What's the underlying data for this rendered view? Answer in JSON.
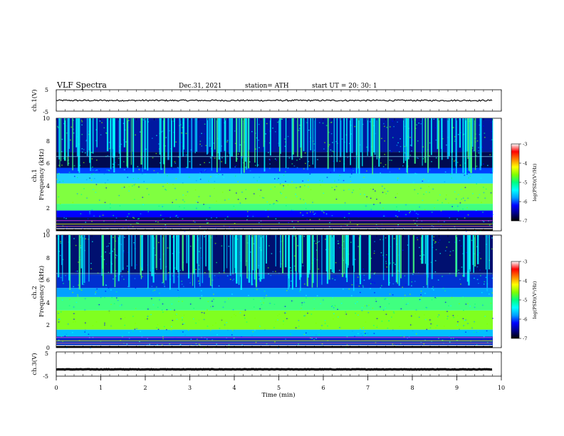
{
  "header": {
    "title": "VLF  Spectra",
    "date": "Dec.31, 2021",
    "station": "station= ATH",
    "start_ut": "start  UT  =    20: 30: 1"
  },
  "chart_data": {
    "type": "heatmap",
    "x": {
      "label": "Time  (min)",
      "range": [
        0,
        10
      ],
      "ticks": [
        "0",
        "1",
        "2",
        "3",
        "4",
        "5",
        "6",
        "7",
        "8",
        "9",
        "10"
      ]
    },
    "panels": [
      {
        "kind": "line",
        "ylabel": "ch.1(V)",
        "ylim": [
          -5,
          5
        ],
        "ticks": [
          "5",
          "-5"
        ],
        "mean": 0,
        "noise_amplitude": 0.35,
        "x_end": 9.8
      },
      {
        "kind": "spectrogram",
        "ylabel": "ch.1\nFrequency (kHz)",
        "ylim": [
          0,
          10
        ],
        "ticks": [
          "0",
          "2",
          "4",
          "6",
          "8",
          "10"
        ],
        "x_end": 9.8
      },
      {
        "kind": "spectrogram",
        "ylabel": "ch.2\nFrequency (kHz)",
        "ylim": [
          0,
          10
        ],
        "ticks": [
          "0",
          "2",
          "4",
          "6",
          "8",
          "10"
        ],
        "x_end": 9.8
      },
      {
        "kind": "line",
        "ylabel": "ch.3(V)",
        "ylim": [
          -5,
          5
        ],
        "ticks": [
          "5",
          "-5"
        ],
        "mean": -2.2,
        "noise_amplitude": 0.1,
        "x_end": 9.8
      }
    ],
    "colorbar": {
      "label": "log(PSD)(V²/Hz)",
      "range": [
        -7,
        -3
      ],
      "ticks": [
        "-3",
        "-4",
        "-5",
        "-6",
        "-7"
      ],
      "colors": [
        "#000000",
        "#00008b",
        "#0000ff",
        "#00a0ff",
        "#00ffff",
        "#00ff80",
        "#80ff00",
        "#ffff00",
        "#ff8000",
        "#ff0000",
        "#ffffff"
      ]
    }
  }
}
